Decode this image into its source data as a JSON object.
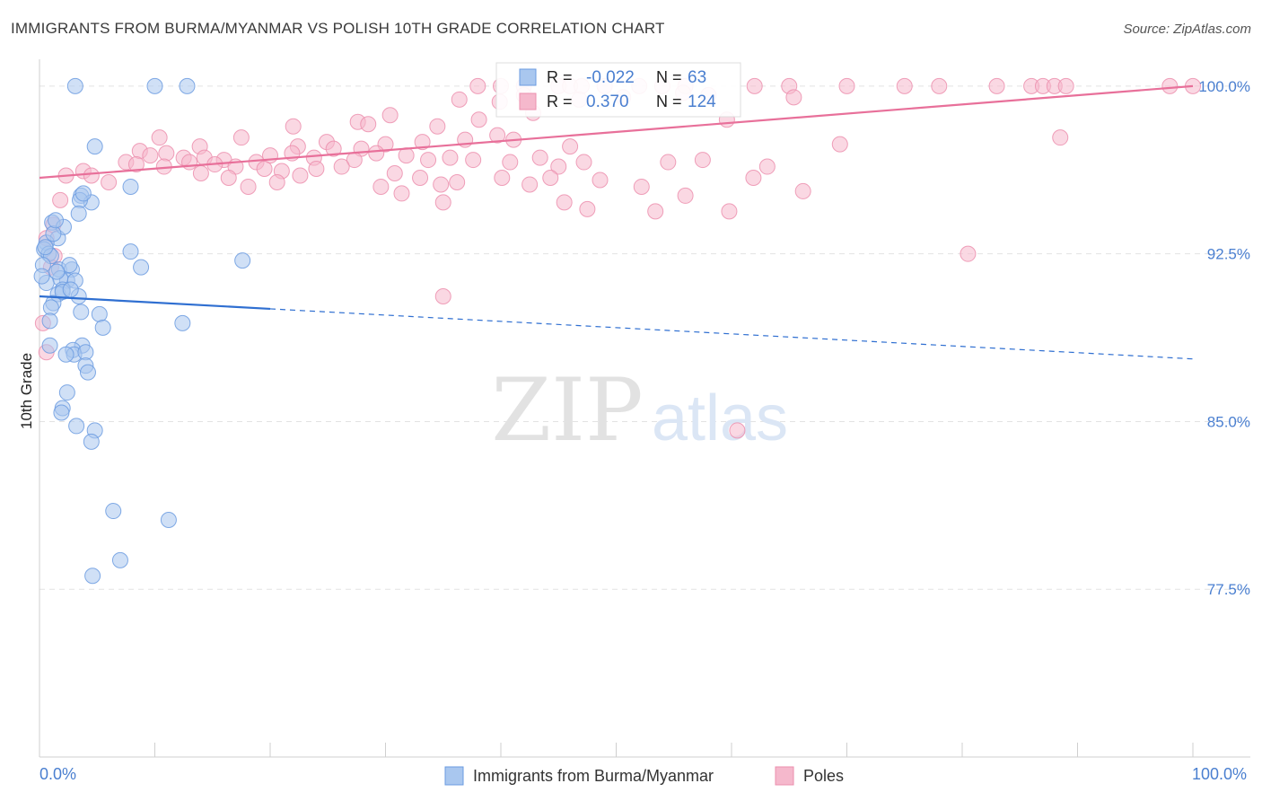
{
  "title": "IMMIGRANTS FROM BURMA/MYANMAR VS POLISH 10TH GRADE CORRELATION CHART",
  "source": "Source: ZipAtlas.com",
  "watermark": {
    "zip": "ZIP",
    "atlas": "atlas"
  },
  "colors": {
    "blue_fill": "#a9c7ef",
    "blue_stroke": "#6b9be0",
    "blue_line": "#2f6fd1",
    "pink_fill": "#f5b8cc",
    "pink_stroke": "#ec8fae",
    "pink_line": "#e8709a",
    "axis_text": "#4a7fd0",
    "grid": "#e3e3e3"
  },
  "chart_data": {
    "type": "scatter",
    "title": "IMMIGRANTS FROM BURMA/MYANMAR VS POLISH 10TH GRADE CORRELATION CHART",
    "xlabel": "",
    "ylabel": "10th Grade",
    "xlim": [
      0,
      100
    ],
    "ylim": [
      70.0,
      101.2
    ],
    "x_tick_labels": [
      "0.0%",
      "100.0%"
    ],
    "y_ticks": [
      77.5,
      85.0,
      92.5,
      100.0
    ],
    "y_tick_labels": [
      "77.5%",
      "85.0%",
      "92.5%",
      "100.0%"
    ],
    "grid": true,
    "legend_position": "top-center",
    "legend": [
      {
        "label_r": "R =",
        "r": "-0.022",
        "label_n": "N =",
        "n": "63"
      },
      {
        "label_r": "R =",
        "r": "0.370",
        "label_n": "N =",
        "n": "124"
      }
    ],
    "bottom_legend": [
      "Immigrants from Burma/Myanmar",
      "Poles"
    ],
    "series": [
      {
        "name": "Immigrants from Burma/Myanmar",
        "color": "blue",
        "trend": {
          "x0": 0,
          "y0": 90.6,
          "x1": 100,
          "y1": 87.8,
          "solid_until": 20
        },
        "points": [
          [
            3.1,
            100.0
          ],
          [
            10.0,
            100.0
          ],
          [
            12.8,
            100.0
          ],
          [
            4.8,
            97.3
          ],
          [
            7.9,
            95.5
          ],
          [
            3.6,
            95.1
          ],
          [
            4.5,
            94.8
          ],
          [
            3.5,
            94.9
          ],
          [
            1.1,
            93.9
          ],
          [
            1.6,
            93.2
          ],
          [
            2.1,
            93.7
          ],
          [
            3.4,
            94.3
          ],
          [
            0.6,
            93.0
          ],
          [
            0.4,
            92.7
          ],
          [
            0.8,
            92.5
          ],
          [
            1.0,
            92.4
          ],
          [
            7.9,
            92.6
          ],
          [
            17.6,
            92.2
          ],
          [
            8.8,
            91.9
          ],
          [
            1.7,
            91.8
          ],
          [
            2.8,
            91.8
          ],
          [
            2.4,
            91.3
          ],
          [
            1.8,
            91.4
          ],
          [
            3.1,
            91.3
          ],
          [
            0.6,
            91.2
          ],
          [
            2.0,
            90.9
          ],
          [
            1.6,
            90.7
          ],
          [
            3.4,
            90.6
          ],
          [
            1.2,
            90.3
          ],
          [
            1.0,
            90.1
          ],
          [
            2.0,
            90.8
          ],
          [
            3.6,
            89.9
          ],
          [
            5.2,
            89.8
          ],
          [
            12.4,
            89.4
          ],
          [
            5.5,
            89.2
          ],
          [
            0.9,
            88.4
          ],
          [
            3.7,
            88.4
          ],
          [
            2.9,
            88.2
          ],
          [
            3.0,
            88.0
          ],
          [
            4.0,
            88.1
          ],
          [
            2.3,
            88.0
          ],
          [
            4.0,
            87.5
          ],
          [
            4.2,
            87.2
          ],
          [
            2.4,
            86.3
          ],
          [
            2.0,
            85.6
          ],
          [
            1.9,
            85.4
          ],
          [
            3.2,
            84.8
          ],
          [
            4.8,
            84.6
          ],
          [
            4.5,
            84.1
          ],
          [
            6.4,
            81.0
          ],
          [
            11.2,
            80.6
          ],
          [
            7.0,
            78.8
          ],
          [
            4.6,
            78.1
          ],
          [
            0.5,
            92.8
          ],
          [
            1.2,
            93.4
          ],
          [
            2.6,
            92.0
          ],
          [
            0.3,
            92.0
          ],
          [
            1.4,
            94.0
          ],
          [
            3.8,
            95.2
          ],
          [
            0.9,
            89.5
          ],
          [
            2.7,
            90.9
          ],
          [
            1.5,
            91.7
          ],
          [
            0.2,
            91.5
          ]
        ]
      },
      {
        "name": "Poles",
        "color": "pink",
        "trend": {
          "x0": 0,
          "y0": 95.9,
          "x1": 100,
          "y1": 100.0
        },
        "points": [
          [
            38,
            100
          ],
          [
            40,
            100
          ],
          [
            42,
            100
          ],
          [
            45,
            100
          ],
          [
            46,
            100
          ],
          [
            47,
            100
          ],
          [
            49,
            100
          ],
          [
            52,
            100
          ],
          [
            54,
            100
          ],
          [
            56,
            100
          ],
          [
            62,
            100
          ],
          [
            65,
            100
          ],
          [
            70,
            100
          ],
          [
            75,
            100
          ],
          [
            78,
            100
          ],
          [
            83,
            100
          ],
          [
            86,
            100
          ],
          [
            87,
            100
          ],
          [
            88,
            100
          ],
          [
            89,
            100
          ],
          [
            98,
            100
          ],
          [
            100,
            100
          ],
          [
            50.6,
            99.5
          ],
          [
            39.9,
            99.3
          ],
          [
            42.0,
            99.6
          ],
          [
            46.8,
            99.4
          ],
          [
            55.8,
            99.7
          ],
          [
            58.0,
            99.6
          ],
          [
            36.4,
            99.4
          ],
          [
            30.4,
            98.7
          ],
          [
            27.6,
            98.4
          ],
          [
            42.8,
            98.8
          ],
          [
            38.1,
            98.5
          ],
          [
            34.5,
            98.2
          ],
          [
            28.5,
            98.3
          ],
          [
            22.0,
            98.2
          ],
          [
            59.6,
            98.5
          ],
          [
            65.4,
            99.5
          ],
          [
            10.4,
            97.7
          ],
          [
            13.9,
            97.3
          ],
          [
            17.5,
            97.7
          ],
          [
            22.4,
            97.3
          ],
          [
            24.9,
            97.5
          ],
          [
            27.9,
            97.2
          ],
          [
            30.0,
            97.4
          ],
          [
            33.2,
            97.5
          ],
          [
            36.9,
            97.6
          ],
          [
            39.7,
            97.8
          ],
          [
            41.1,
            97.6
          ],
          [
            46.0,
            97.3
          ],
          [
            54.5,
            96.6
          ],
          [
            57.5,
            96.7
          ],
          [
            69.4,
            97.4
          ],
          [
            88.5,
            97.7
          ],
          [
            8.7,
            97.1
          ],
          [
            9.6,
            96.9
          ],
          [
            11.0,
            97.0
          ],
          [
            12.5,
            96.8
          ],
          [
            14.3,
            96.8
          ],
          [
            16.0,
            96.7
          ],
          [
            18.8,
            96.6
          ],
          [
            20.0,
            96.9
          ],
          [
            21.9,
            97.0
          ],
          [
            23.8,
            96.8
          ],
          [
            25.5,
            97.2
          ],
          [
            27.3,
            96.7
          ],
          [
            29.2,
            97.0
          ],
          [
            31.8,
            96.9
          ],
          [
            33.7,
            96.7
          ],
          [
            35.6,
            96.8
          ],
          [
            37.6,
            96.7
          ],
          [
            40.8,
            96.6
          ],
          [
            43.4,
            96.8
          ],
          [
            45.0,
            96.4
          ],
          [
            47.2,
            96.6
          ],
          [
            7.5,
            96.6
          ],
          [
            8.4,
            96.5
          ],
          [
            10.8,
            96.4
          ],
          [
            13.0,
            96.6
          ],
          [
            15.2,
            96.5
          ],
          [
            17.0,
            96.4
          ],
          [
            19.5,
            96.3
          ],
          [
            21.0,
            96.2
          ],
          [
            24.0,
            96.3
          ],
          [
            26.2,
            96.4
          ],
          [
            30.8,
            96.1
          ],
          [
            33.0,
            95.9
          ],
          [
            34.8,
            95.6
          ],
          [
            36.2,
            95.7
          ],
          [
            40.1,
            95.9
          ],
          [
            42.5,
            95.6
          ],
          [
            44.3,
            95.9
          ],
          [
            48.6,
            95.8
          ],
          [
            52.2,
            95.5
          ],
          [
            56.0,
            95.1
          ],
          [
            61.9,
            95.9
          ],
          [
            63.1,
            96.4
          ],
          [
            66.2,
            95.3
          ],
          [
            3.8,
            96.2
          ],
          [
            4.5,
            96.0
          ],
          [
            2.3,
            96.0
          ],
          [
            1.8,
            94.9
          ],
          [
            1.2,
            93.8
          ],
          [
            0.6,
            93.2
          ],
          [
            1.3,
            92.4
          ],
          [
            1.0,
            91.9
          ],
          [
            0.3,
            89.4
          ],
          [
            0.6,
            88.1
          ],
          [
            14.0,
            96.1
          ],
          [
            16.4,
            95.9
          ],
          [
            18.1,
            95.5
          ],
          [
            20.6,
            95.7
          ],
          [
            22.6,
            96.0
          ],
          [
            29.6,
            95.5
          ],
          [
            31.4,
            95.2
          ],
          [
            35.0,
            94.8
          ],
          [
            45.5,
            94.8
          ],
          [
            47.5,
            94.5
          ],
          [
            53.4,
            94.4
          ],
          [
            59.8,
            94.4
          ],
          [
            80.5,
            92.5
          ],
          [
            35.0,
            90.6
          ],
          [
            60.5,
            84.6
          ],
          [
            6.0,
            95.7
          ]
        ]
      }
    ]
  }
}
